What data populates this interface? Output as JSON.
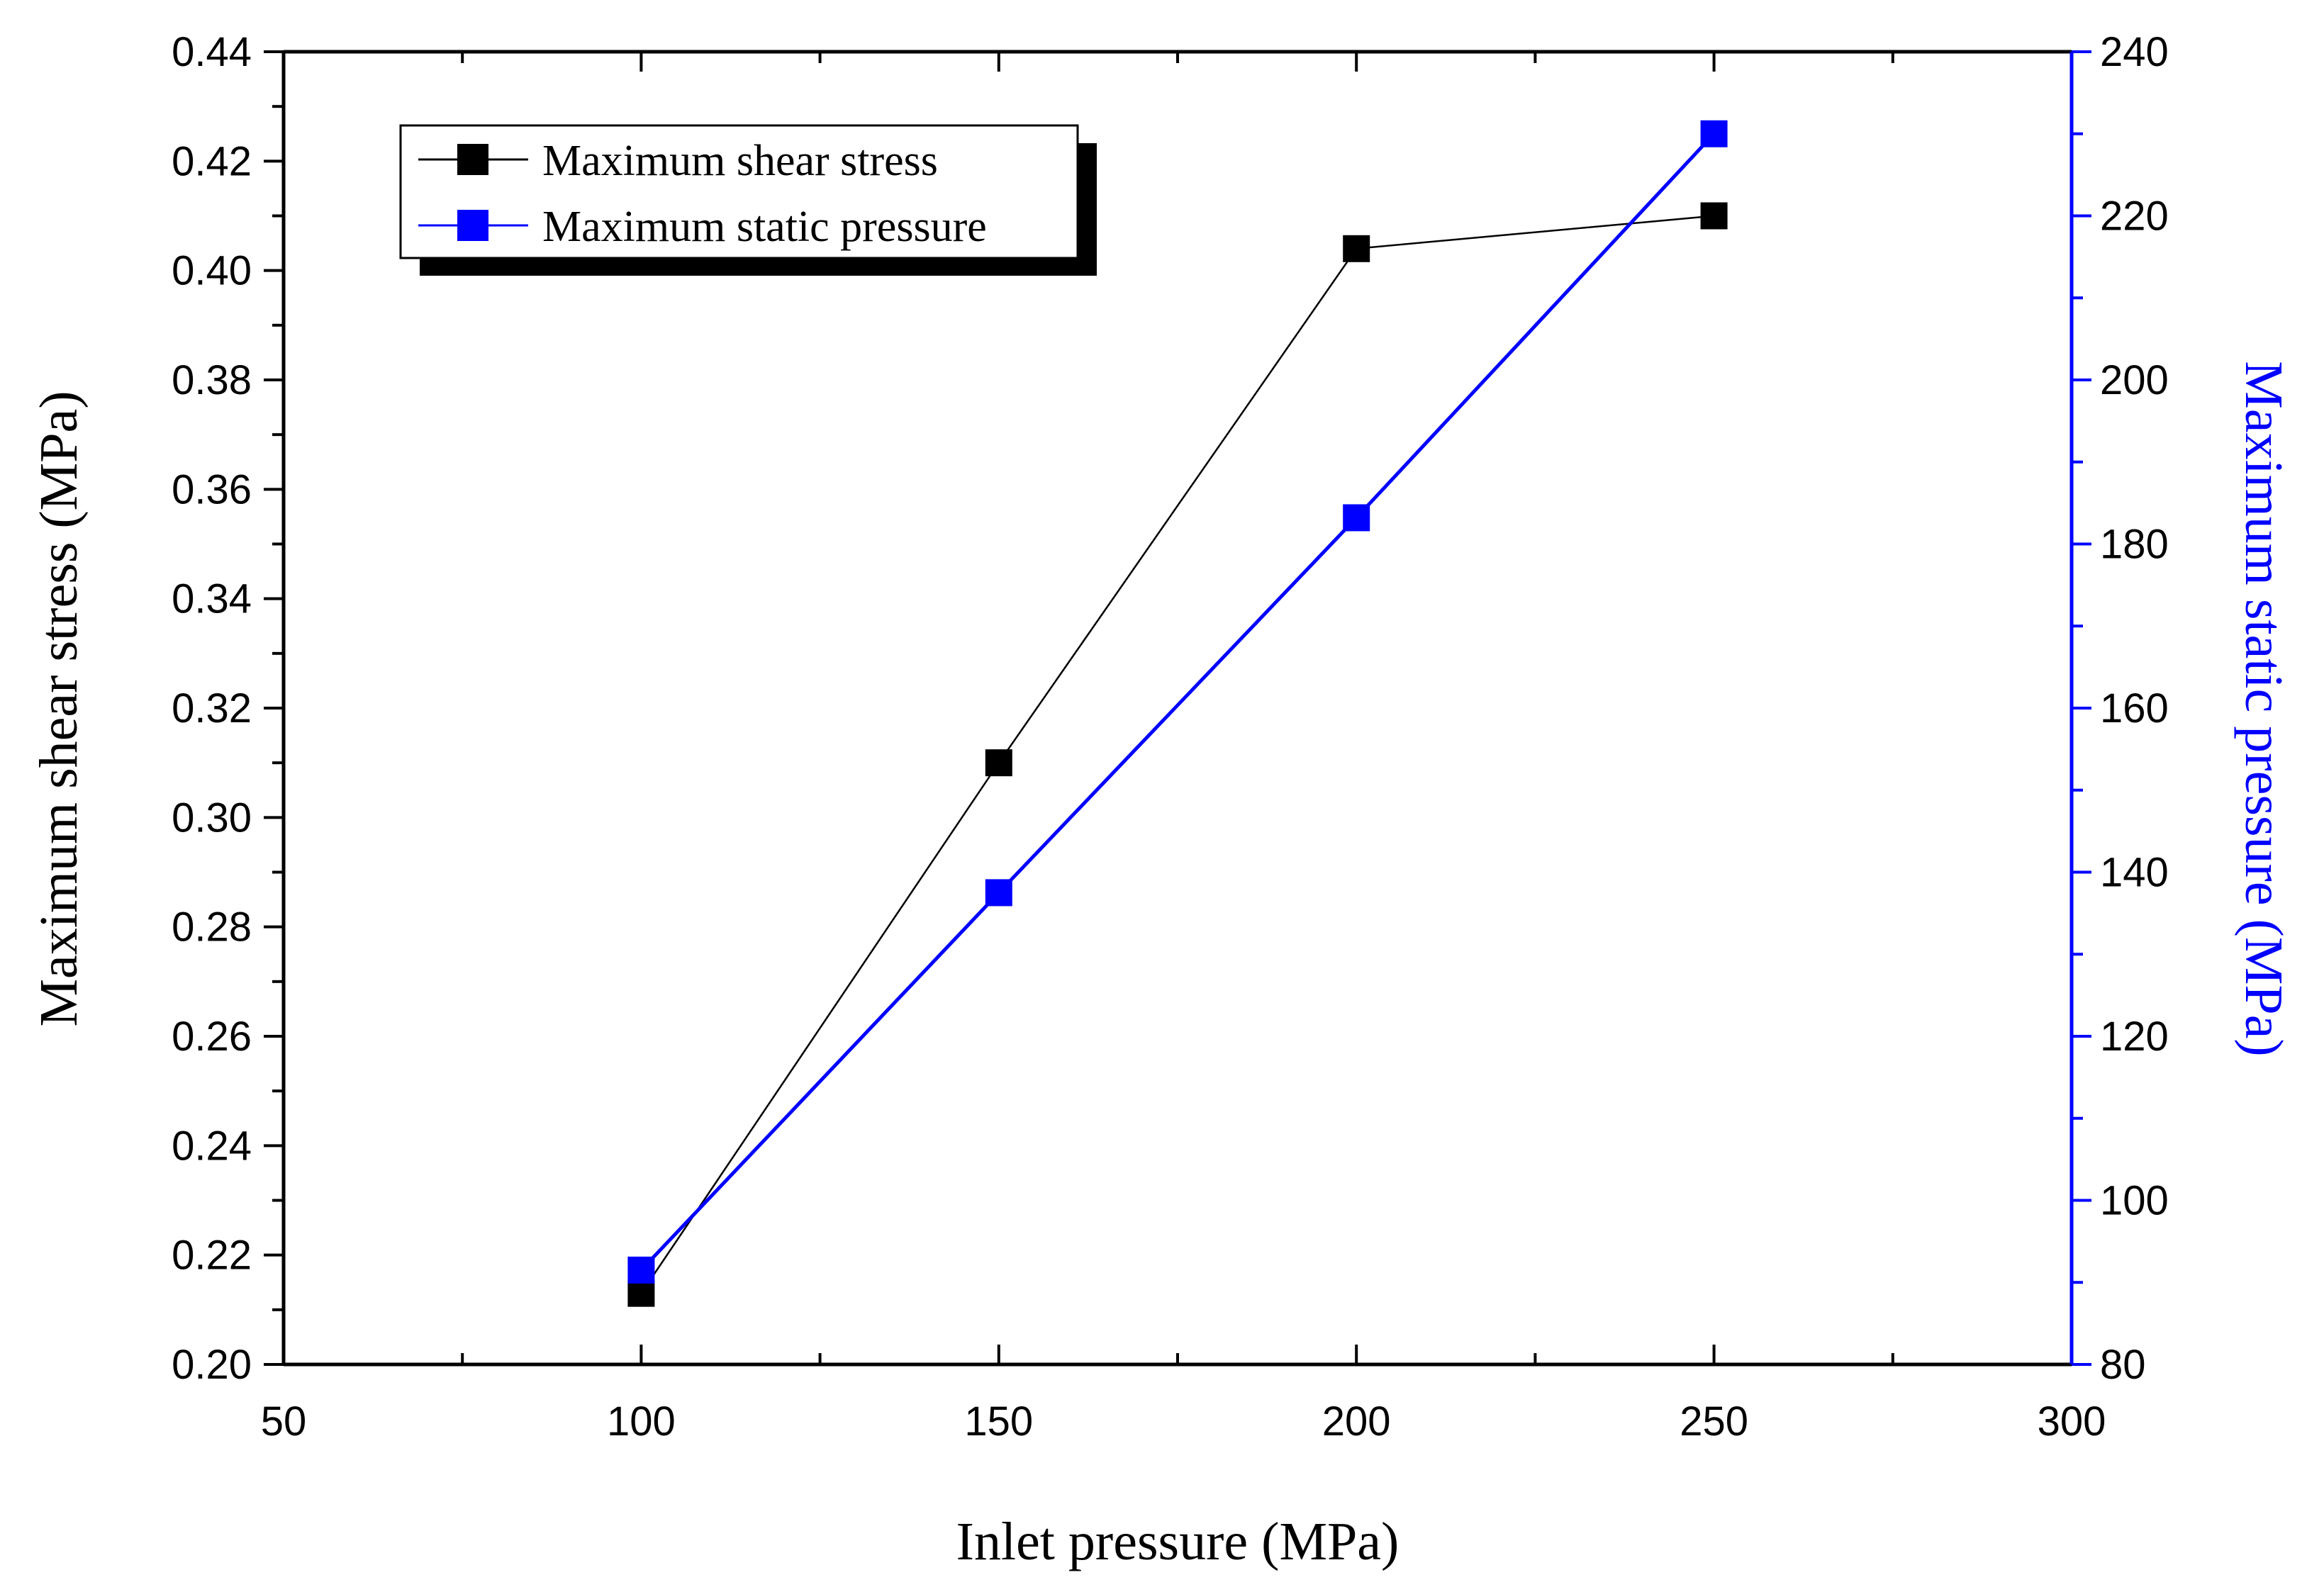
{
  "chart_data": {
    "type": "line",
    "title": "",
    "xlabel": "Inlet pressure (MPa)",
    "ylabel": "Maximum shear stress (MPa)",
    "y2label": "Maximum static pressure (MPa)",
    "xlim": [
      50,
      300
    ],
    "ylim": [
      0.2,
      0.44
    ],
    "y2lim": [
      80,
      240
    ],
    "x_ticks": [
      "50",
      "100",
      "150",
      "200",
      "250",
      "300"
    ],
    "x_tick_values": [
      50,
      100,
      150,
      200,
      250,
      300
    ],
    "y_ticks": [
      "0.20",
      "0.22",
      "0.24",
      "0.26",
      "0.28",
      "0.30",
      "0.32",
      "0.34",
      "0.36",
      "0.38",
      "0.40",
      "0.42",
      "0.44"
    ],
    "y_tick_values": [
      0.2,
      0.22,
      0.24,
      0.26,
      0.28,
      0.3,
      0.32,
      0.34,
      0.36,
      0.38,
      0.4,
      0.42,
      0.44
    ],
    "y2_ticks": [
      "80",
      "100",
      "120",
      "140",
      "160",
      "180",
      "200",
      "220",
      "240"
    ],
    "y2_tick_values": [
      80,
      100,
      120,
      140,
      160,
      180,
      200,
      220,
      240
    ],
    "grid": false,
    "legend_position": "top-left",
    "series": [
      {
        "name": "Maximum shear stress",
        "axis": "left",
        "color": "#000000",
        "x": [
          100,
          150,
          200,
          250
        ],
        "values": [
          0.213,
          0.31,
          0.404,
          0.41
        ]
      },
      {
        "name": "Maximum static pressure",
        "axis": "right",
        "color": "#0000ff",
        "x": [
          100,
          150,
          200,
          250
        ],
        "values": [
          91.5,
          137.5,
          183.2,
          230.0
        ]
      }
    ],
    "right_axis_color": "#0000ff"
  }
}
